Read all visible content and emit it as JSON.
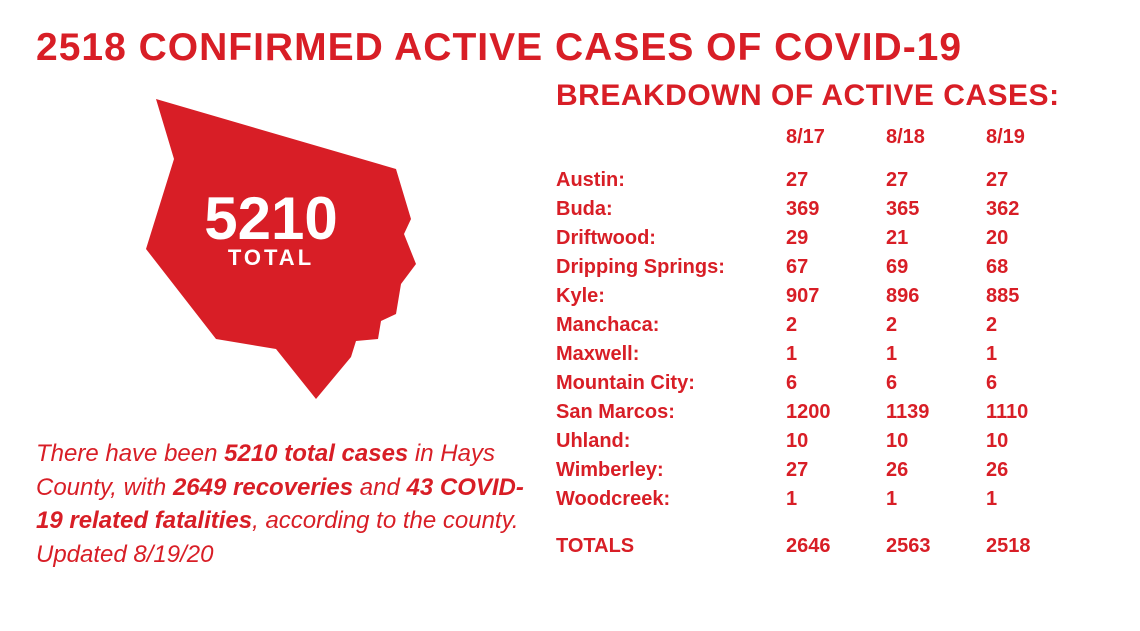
{
  "colors": {
    "accent": "#d81e26",
    "background": "#ffffff",
    "map_text": "#ffffff"
  },
  "headline": "2518 CONFIRMED ACTIVE CASES OF COVID-19",
  "map": {
    "number": "5210",
    "label": "TOTAL"
  },
  "summary": {
    "prefix": "There have been ",
    "bold1": "5210 total cases",
    "mid1": " in Hays County, with ",
    "bold2": "2649 recoveries",
    "mid2": " and ",
    "bold3": "43 COVID-19 related fatalities",
    "suffix": ", according to the county. Updated 8/19/20"
  },
  "breakdown": {
    "title": "BREAKDOWN OF ACTIVE CASES:",
    "dates": [
      "8/17",
      "8/18",
      "8/19"
    ],
    "rows": [
      {
        "city": "Austin:",
        "v": [
          "27",
          "27",
          "27"
        ]
      },
      {
        "city": "Buda:",
        "v": [
          "369",
          "365",
          "362"
        ]
      },
      {
        "city": "Driftwood:",
        "v": [
          "29",
          "21",
          "20"
        ]
      },
      {
        "city": "Dripping Springs:",
        "v": [
          "67",
          "69",
          "68"
        ]
      },
      {
        "city": "Kyle:",
        "v": [
          "907",
          "896",
          "885"
        ]
      },
      {
        "city": "Manchaca:",
        "v": [
          "2",
          "2",
          "2"
        ]
      },
      {
        "city": "Maxwell:",
        "v": [
          "1",
          "1",
          "1"
        ]
      },
      {
        "city": "Mountain City:",
        "v": [
          "6",
          "6",
          "6"
        ]
      },
      {
        "city": "San Marcos:",
        "v": [
          "1200",
          "1139",
          "1110"
        ]
      },
      {
        "city": "Uhland:",
        "v": [
          "10",
          "10",
          "10"
        ]
      },
      {
        "city": "Wimberley:",
        "v": [
          "27",
          "26",
          "26"
        ]
      },
      {
        "city": "Woodcreek:",
        "v": [
          "1",
          "1",
          "1"
        ]
      }
    ],
    "totals": {
      "label": "TOTALS",
      "v": [
        "2646",
        "2563",
        "2518"
      ]
    }
  }
}
